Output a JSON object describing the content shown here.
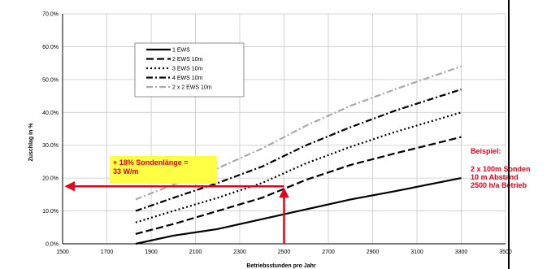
{
  "chart_data": {
    "type": "line",
    "xlabel": "Betriebsstunden pro Jahr",
    "ylabel": "Zuschlag in %",
    "xlim": [
      1500,
      3500
    ],
    "ylim": [
      0,
      70
    ],
    "x_ticks": [
      "1500",
      "1700",
      "1900",
      "2100",
      "2300",
      "2500",
      "2700",
      "2900",
      "3100",
      "3300",
      "3500"
    ],
    "y_ticks": [
      "0.0%",
      "10.0%",
      "20.0%",
      "30.0%",
      "40.0%",
      "50.0%",
      "60.0%",
      "70.0%"
    ],
    "grid": true,
    "legend_position": "top-left",
    "series": [
      {
        "name": "1 EWS",
        "color": "#000000",
        "dash": "solid",
        "points": [
          [
            1830,
            0
          ],
          [
            2000,
            2.5
          ],
          [
            2200,
            4.5
          ],
          [
            2400,
            7.5
          ],
          [
            2600,
            10.5
          ],
          [
            2800,
            13.5
          ],
          [
            3000,
            16
          ],
          [
            3300,
            20
          ]
        ]
      },
      {
        "name": "2 EWS 10m",
        "color": "#000000",
        "dash": "long",
        "points": [
          [
            1830,
            3
          ],
          [
            2000,
            6
          ],
          [
            2200,
            10
          ],
          [
            2400,
            14
          ],
          [
            2600,
            19.5
          ],
          [
            2800,
            24
          ],
          [
            3000,
            27.5
          ],
          [
            3300,
            32.5
          ]
        ]
      },
      {
        "name": "3 EWS 10m",
        "color": "#000000",
        "dash": "dot",
        "points": [
          [
            1830,
            6.5
          ],
          [
            2000,
            10
          ],
          [
            2200,
            14
          ],
          [
            2400,
            18.5
          ],
          [
            2600,
            24.5
          ],
          [
            2800,
            29.5
          ],
          [
            3000,
            34
          ],
          [
            3300,
            40
          ]
        ]
      },
      {
        "name": "4 EWS 10m",
        "color": "#000000",
        "dash": "dashdot",
        "points": [
          [
            1830,
            10
          ],
          [
            2000,
            14
          ],
          [
            2200,
            18.5
          ],
          [
            2400,
            23.5
          ],
          [
            2600,
            30
          ],
          [
            2800,
            35.5
          ],
          [
            3000,
            40.5
          ],
          [
            3300,
            47
          ]
        ]
      },
      {
        "name": "2 x 2 EWS 10m",
        "color": "#aaaaaa",
        "dash": "dashdot",
        "points": [
          [
            1830,
            13.5
          ],
          [
            2000,
            18
          ],
          [
            2200,
            23
          ],
          [
            2400,
            29
          ],
          [
            2600,
            36
          ],
          [
            2800,
            42
          ],
          [
            3000,
            47
          ],
          [
            3300,
            54
          ]
        ]
      }
    ],
    "annotation": {
      "callout_lines": [
        "+ 18% Sondenlänge =",
        "33 W/m"
      ],
      "marker_x": 2500,
      "marker_y": 17.5,
      "color": "#e8001c",
      "callout_bg": "#ffff44"
    },
    "side_note": {
      "title": "Beispiel:",
      "lines": [
        "2 x 100m Sonden",
        "10 m Abstand",
        "2500 h/a Betrieb"
      ]
    }
  }
}
